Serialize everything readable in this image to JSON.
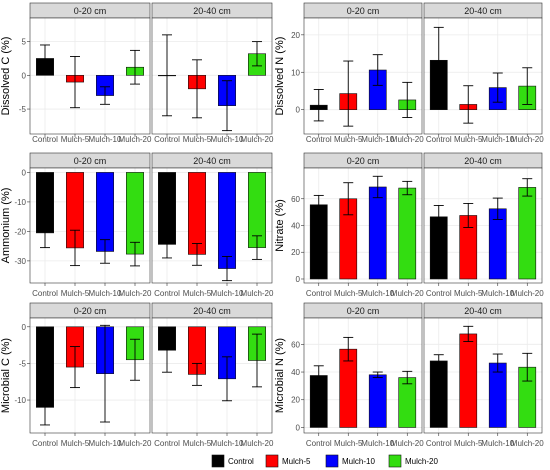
{
  "colors": {
    "Control": "#000000",
    "Mulch-5": "#ff0000",
    "Mulch-10": "#0000ff",
    "Mulch-20": "#33dd11",
    "strip": "#d9d9d9",
    "panel_bg": "#ffffff",
    "grid": "#ebebeb",
    "axis_text": "#4d4d4d"
  },
  "legend": {
    "position": "bottom",
    "entries": [
      "Control",
      "Mulch-5",
      "Mulch-10",
      "Mulch-20"
    ]
  },
  "chart_data": [
    {
      "type": "bar",
      "ylabel": "Dissolved C (%)",
      "facets": [
        "0-20 cm",
        "20-40 cm"
      ],
      "categories": [
        "Control",
        "Mulch-5",
        "Mulch-10",
        "Mulch-20"
      ],
      "ylim": [
        -8.7,
        8.5
      ],
      "yticks": [
        -5,
        0,
        5
      ],
      "grid": true,
      "values": {
        "0-20 cm": [
          2.5,
          -1.0,
          -3.0,
          1.2
        ],
        "20-40 cm": [
          0.0,
          -2.0,
          -4.5,
          3.2
        ]
      },
      "err": {
        "0-20 cm": [
          2.0,
          3.8,
          1.3,
          2.5
        ],
        "20-40 cm": [
          6.0,
          4.3,
          3.7,
          1.8
        ]
      }
    },
    {
      "type": "bar",
      "ylabel": "Dissolved N (%)",
      "facets": [
        "0-20 cm",
        "20-40 cm"
      ],
      "categories": [
        "Control",
        "Mulch-5",
        "Mulch-10",
        "Mulch-20"
      ],
      "ylim": [
        -6.5,
        24.5
      ],
      "yticks": [
        0,
        10,
        20
      ],
      "grid": true,
      "values": {
        "0-20 cm": [
          1.2,
          4.3,
          10.6,
          2.6
        ],
        "20-40 cm": [
          13.2,
          1.4,
          5.9,
          6.3
        ]
      },
      "err": {
        "0-20 cm": [
          4.2,
          8.7,
          4.1,
          4.7
        ],
        "20-40 cm": [
          8.8,
          5.0,
          3.9,
          4.9
        ]
      }
    },
    {
      "type": "bar",
      "ylabel": "Ammonium (%)",
      "facets": [
        "0-20 cm",
        "20-40 cm"
      ],
      "categories": [
        "Control",
        "Mulch-5",
        "Mulch-10",
        "Mulch-20"
      ],
      "ylim": [
        -37.5,
        1.5
      ],
      "yticks": [
        -30,
        -20,
        -10,
        0
      ],
      "grid": true,
      "values": {
        "0-20 cm": [
          -20.5,
          -25.6,
          -26.8,
          -27.7
        ],
        "20-40 cm": [
          -24.4,
          -27.8,
          -32.6,
          -25.5
        ]
      },
      "err": {
        "0-20 cm": [
          5.0,
          6.0,
          4.0,
          4.0
        ],
        "20-40 cm": [
          4.6,
          3.7,
          4.1,
          4.0
        ]
      }
    },
    {
      "type": "bar",
      "ylabel": "Nitrate (%)",
      "facets": [
        "0-20 cm",
        "20-40 cm"
      ],
      "categories": [
        "Control",
        "Mulch-5",
        "Mulch-10",
        "Mulch-20"
      ],
      "ylim": [
        -3,
        83
      ],
      "yticks": [
        0,
        20,
        40,
        60
      ],
      "grid": true,
      "values": {
        "0-20 cm": [
          55.5,
          60.0,
          68.8,
          68.0
        ],
        "20-40 cm": [
          46.5,
          47.5,
          52.5,
          68.5
        ]
      },
      "err": {
        "0-20 cm": [
          7.0,
          12.0,
          8.0,
          5.0
        ],
        "20-40 cm": [
          8.5,
          9.0,
          8.0,
          6.5
        ]
      }
    },
    {
      "type": "bar",
      "ylabel": "Microbial C (%)",
      "facets": [
        "0-20 cm",
        "20-40 cm"
      ],
      "categories": [
        "Control",
        "Mulch-5",
        "Mulch-10",
        "Mulch-20"
      ],
      "ylim": [
        -14.5,
        1.2
      ],
      "yticks": [
        -10,
        -5,
        0
      ],
      "grid": true,
      "values": {
        "0-20 cm": [
          -11.0,
          -5.5,
          -6.4,
          -4.5
        ],
        "20-40 cm": [
          -3.2,
          -6.5,
          -7.1,
          -4.6
        ]
      },
      "err": {
        "0-20 cm": [
          2.4,
          2.8,
          6.6,
          2.8
        ],
        "20-40 cm": [
          3.0,
          1.5,
          3.0,
          3.6
        ]
      }
    },
    {
      "type": "bar",
      "ylabel": "Microbial N (%)",
      "facets": [
        "0-20 cm",
        "20-40 cm"
      ],
      "categories": [
        "Control",
        "Mulch-5",
        "Mulch-10",
        "Mulch-20"
      ],
      "ylim": [
        -4,
        79
      ],
      "yticks": [
        0,
        20,
        40,
        60
      ],
      "grid": true,
      "values": {
        "0-20 cm": [
          37.5,
          56.5,
          38.0,
          36.0
        ],
        "20-40 cm": [
          48.0,
          67.5,
          46.5,
          43.5
        ]
      },
      "err": {
        "0-20 cm": [
          7.0,
          8.5,
          2.0,
          4.5
        ],
        "20-40 cm": [
          4.5,
          5.5,
          6.5,
          10.0
        ]
      }
    }
  ]
}
